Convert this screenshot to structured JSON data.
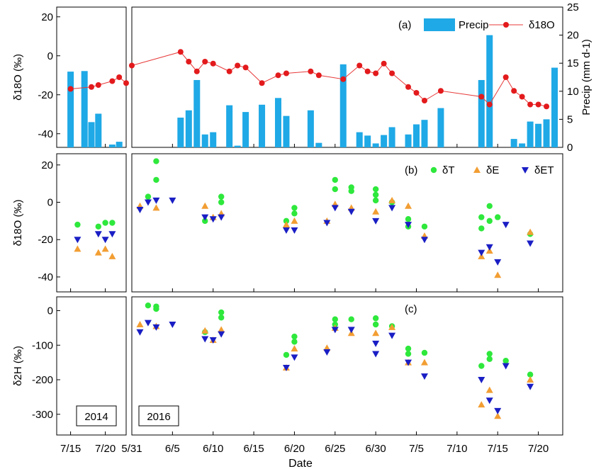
{
  "colors": {
    "precip_bar": "#1FA9E6",
    "precip_line": "#E83A3A",
    "d18o_marker": "#E31A1C",
    "delta_T": "#2EE83C",
    "delta_E": "#F29E33",
    "delta_ET": "#1A1EC4"
  },
  "figure": {
    "x_label": "Date",
    "year_left": "2014",
    "year_right": "2016",
    "left_ticks": [
      "7/15",
      "7/20"
    ],
    "right_ticks": [
      "5/31",
      "6/5",
      "6/10",
      "6/15",
      "6/20",
      "6/25",
      "6/30",
      "7/5",
      "7/10",
      "7/15",
      "7/20"
    ]
  },
  "chart_data": [
    {
      "id": "a",
      "type": "bar",
      "panel_label": "(a)",
      "ylabel_left": "δ18O (‰)",
      "ylabel_right": "Precip (mm d-1)",
      "ylim_left": [
        -47,
        25
      ],
      "yticks_left": [
        20,
        0,
        -20,
        -40
      ],
      "ylim_right": [
        0,
        25
      ],
      "yticks_right": [
        0,
        5,
        10,
        15,
        20,
        25
      ],
      "legend": {
        "position": "top-right",
        "precip_label": "Precip",
        "d18o_label": "δ18O"
      },
      "precip_2014": [
        {
          "x": "2014-07-15",
          "y": 13.5
        },
        {
          "x": "2014-07-17",
          "y": 13.6
        },
        {
          "x": "2014-07-18",
          "y": 4.5
        },
        {
          "x": "2014-07-19",
          "y": 6.0
        },
        {
          "x": "2014-07-21",
          "y": 0.5
        },
        {
          "x": "2014-07-22",
          "y": 1.0
        }
      ],
      "precip_2016": [
        {
          "x": "2016-06-06",
          "y": 5.3
        },
        {
          "x": "2016-06-07",
          "y": 6.6
        },
        {
          "x": "2016-06-08",
          "y": 12.0
        },
        {
          "x": "2016-06-09",
          "y": 2.3
        },
        {
          "x": "2016-06-10",
          "y": 2.7
        },
        {
          "x": "2016-06-12",
          "y": 7.5
        },
        {
          "x": "2016-06-13",
          "y": 0.3
        },
        {
          "x": "2016-06-14",
          "y": 6.3
        },
        {
          "x": "2016-06-16",
          "y": 7.6
        },
        {
          "x": "2016-06-18",
          "y": 8.8
        },
        {
          "x": "2016-06-19",
          "y": 5.6
        },
        {
          "x": "2016-06-22",
          "y": 6.6
        },
        {
          "x": "2016-06-23",
          "y": 0.8
        },
        {
          "x": "2016-06-26",
          "y": 14.8
        },
        {
          "x": "2016-06-28",
          "y": 2.7
        },
        {
          "x": "2016-06-29",
          "y": 2.1
        },
        {
          "x": "2016-06-30",
          "y": 0.7
        },
        {
          "x": "2016-07-01",
          "y": 2.2
        },
        {
          "x": "2016-07-02",
          "y": 3.6
        },
        {
          "x": "2016-07-04",
          "y": 2.3
        },
        {
          "x": "2016-07-05",
          "y": 4.1
        },
        {
          "x": "2016-07-06",
          "y": 4.9
        },
        {
          "x": "2016-07-08",
          "y": 7.0
        },
        {
          "x": "2016-07-13",
          "y": 12.0
        },
        {
          "x": "2016-07-14",
          "y": 20.0
        },
        {
          "x": "2016-07-17",
          "y": 1.5
        },
        {
          "x": "2016-07-18",
          "y": 0.7
        },
        {
          "x": "2016-07-19",
          "y": 4.6
        },
        {
          "x": "2016-07-20",
          "y": 4.2
        },
        {
          "x": "2016-07-21",
          "y": 5.0
        },
        {
          "x": "2016-07-22",
          "y": 14.2
        }
      ],
      "d18o_2014": [
        {
          "x": "2014-07-15",
          "y": -17
        },
        {
          "x": "2014-07-18",
          "y": -16
        },
        {
          "x": "2014-07-19",
          "y": -15
        },
        {
          "x": "2014-07-21",
          "y": -13
        },
        {
          "x": "2014-07-22",
          "y": -11
        },
        {
          "x": "2014-07-23",
          "y": -14
        }
      ],
      "d18o_2016": [
        {
          "x": "2016-05-31",
          "y": -5
        },
        {
          "x": "2016-06-06",
          "y": 2
        },
        {
          "x": "2016-06-07",
          "y": -3
        },
        {
          "x": "2016-06-08",
          "y": -8
        },
        {
          "x": "2016-06-09",
          "y": -3
        },
        {
          "x": "2016-06-10",
          "y": -4
        },
        {
          "x": "2016-06-12",
          "y": -8
        },
        {
          "x": "2016-06-13",
          "y": -5
        },
        {
          "x": "2016-06-14",
          "y": -6
        },
        {
          "x": "2016-06-16",
          "y": -14
        },
        {
          "x": "2016-06-18",
          "y": -10
        },
        {
          "x": "2016-06-19",
          "y": -9
        },
        {
          "x": "2016-06-22",
          "y": -8
        },
        {
          "x": "2016-06-23",
          "y": -10
        },
        {
          "x": "2016-06-26",
          "y": -12
        },
        {
          "x": "2016-06-28",
          "y": -5
        },
        {
          "x": "2016-06-29",
          "y": -8
        },
        {
          "x": "2016-06-30",
          "y": -9
        },
        {
          "x": "2016-07-01",
          "y": -4
        },
        {
          "x": "2016-07-02",
          "y": -9
        },
        {
          "x": "2016-07-04",
          "y": -16
        },
        {
          "x": "2016-07-05",
          "y": -19
        },
        {
          "x": "2016-07-06",
          "y": -23
        },
        {
          "x": "2016-07-08",
          "y": -18
        },
        {
          "x": "2016-07-13",
          "y": -21
        },
        {
          "x": "2016-07-14",
          "y": -25
        },
        {
          "x": "2016-07-16",
          "y": -11
        },
        {
          "x": "2016-07-17",
          "y": -18
        },
        {
          "x": "2016-07-18",
          "y": -21
        },
        {
          "x": "2016-07-19",
          "y": -25
        },
        {
          "x": "2016-07-20",
          "y": -25
        },
        {
          "x": "2016-07-21",
          "y": -26
        }
      ]
    },
    {
      "id": "b",
      "type": "scatter",
      "panel_label": "(b)",
      "ylabel": "δ18O (‰)",
      "ylim": [
        -48,
        26
      ],
      "yticks": [
        20,
        0,
        -20,
        -40
      ],
      "legend": {
        "position": "top-right",
        "labels": [
          "δT",
          "δE",
          "δET"
        ]
      },
      "series": [
        {
          "name": "δT",
          "points": [
            {
              "x": "2014-07-16",
              "y": -12
            },
            {
              "x": "2014-07-19",
              "y": -13
            },
            {
              "x": "2014-07-20",
              "y": -11
            },
            {
              "x": "2014-07-21",
              "y": -11
            },
            {
              "x": "2016-06-02",
              "y": 3
            },
            {
              "x": "2016-06-03",
              "y": 22
            },
            {
              "x": "2016-06-03",
              "y": 12
            },
            {
              "x": "2016-06-09",
              "y": -10
            },
            {
              "x": "2016-06-11",
              "y": 3
            },
            {
              "x": "2016-06-11",
              "y": 0
            },
            {
              "x": "2016-06-19",
              "y": -10
            },
            {
              "x": "2016-06-20",
              "y": -3
            },
            {
              "x": "2016-06-20",
              "y": -6
            },
            {
              "x": "2016-06-25",
              "y": 12
            },
            {
              "x": "2016-06-25",
              "y": 7
            },
            {
              "x": "2016-06-27",
              "y": 8
            },
            {
              "x": "2016-06-27",
              "y": 6
            },
            {
              "x": "2016-06-30",
              "y": 7
            },
            {
              "x": "2016-06-30",
              "y": 4
            },
            {
              "x": "2016-06-30",
              "y": 1
            },
            {
              "x": "2016-07-02",
              "y": 0
            },
            {
              "x": "2016-07-04",
              "y": -9
            },
            {
              "x": "2016-07-04",
              "y": -13
            },
            {
              "x": "2016-07-06",
              "y": -13
            },
            {
              "x": "2016-07-13",
              "y": -8
            },
            {
              "x": "2016-07-13",
              "y": -14
            },
            {
              "x": "2016-07-14",
              "y": -2
            },
            {
              "x": "2016-07-14",
              "y": -10
            },
            {
              "x": "2016-07-15",
              "y": -8
            },
            {
              "x": "2016-07-19",
              "y": -17
            }
          ]
        },
        {
          "name": "δE",
          "points": [
            {
              "x": "2014-07-16",
              "y": -25
            },
            {
              "x": "2014-07-19",
              "y": -27
            },
            {
              "x": "2014-07-20",
              "y": -25
            },
            {
              "x": "2014-07-21",
              "y": -29
            },
            {
              "x": "2016-06-01",
              "y": -2
            },
            {
              "x": "2016-06-03",
              "y": -3
            },
            {
              "x": "2016-06-09",
              "y": -2
            },
            {
              "x": "2016-06-10",
              "y": -8
            },
            {
              "x": "2016-06-11",
              "y": -6
            },
            {
              "x": "2016-06-19",
              "y": -12
            },
            {
              "x": "2016-06-20",
              "y": -10
            },
            {
              "x": "2016-06-24",
              "y": -10
            },
            {
              "x": "2016-06-25",
              "y": -1
            },
            {
              "x": "2016-06-27",
              "y": -3
            },
            {
              "x": "2016-06-30",
              "y": -5
            },
            {
              "x": "2016-07-02",
              "y": 1
            },
            {
              "x": "2016-07-04",
              "y": -2
            },
            {
              "x": "2016-07-06",
              "y": -18
            },
            {
              "x": "2016-07-13",
              "y": -29
            },
            {
              "x": "2016-07-14",
              "y": -26
            },
            {
              "x": "2016-07-15",
              "y": -39
            },
            {
              "x": "2016-07-19",
              "y": -16
            }
          ]
        },
        {
          "name": "δET",
          "points": [
            {
              "x": "2014-07-16",
              "y": -20
            },
            {
              "x": "2014-07-19",
              "y": -17
            },
            {
              "x": "2014-07-20",
              "y": -20
            },
            {
              "x": "2014-07-21",
              "y": -17
            },
            {
              "x": "2016-06-01",
              "y": -4
            },
            {
              "x": "2016-06-02",
              "y": 0
            },
            {
              "x": "2016-06-03",
              "y": 1
            },
            {
              "x": "2016-06-05",
              "y": 1
            },
            {
              "x": "2016-06-09",
              "y": -8
            },
            {
              "x": "2016-06-10",
              "y": -9
            },
            {
              "x": "2016-06-11",
              "y": -8
            },
            {
              "x": "2016-06-19",
              "y": -15
            },
            {
              "x": "2016-06-20",
              "y": -15
            },
            {
              "x": "2016-06-24",
              "y": -11
            },
            {
              "x": "2016-06-25",
              "y": -3
            },
            {
              "x": "2016-06-27",
              "y": -5
            },
            {
              "x": "2016-06-30",
              "y": -10
            },
            {
              "x": "2016-07-02",
              "y": -3
            },
            {
              "x": "2016-07-04",
              "y": -12
            },
            {
              "x": "2016-07-06",
              "y": -20
            },
            {
              "x": "2016-07-13",
              "y": -27
            },
            {
              "x": "2016-07-14",
              "y": -24
            },
            {
              "x": "2016-07-15",
              "y": -32
            },
            {
              "x": "2016-07-16",
              "y": -12
            },
            {
              "x": "2016-07-19",
              "y": -22
            }
          ]
        }
      ]
    },
    {
      "id": "c",
      "type": "scatter",
      "panel_label": "(c)",
      "ylabel": "δ2H (‰)",
      "ylim": [
        -360,
        40
      ],
      "yticks": [
        0,
        -100,
        -200,
        -300
      ],
      "series": [
        {
          "name": "δT",
          "points": [
            {
              "x": "2016-06-02",
              "y": 15
            },
            {
              "x": "2016-06-03",
              "y": 5
            },
            {
              "x": "2016-06-03",
              "y": 12
            },
            {
              "x": "2016-06-09",
              "y": -62
            },
            {
              "x": "2016-06-11",
              "y": -5
            },
            {
              "x": "2016-06-11",
              "y": -20
            },
            {
              "x": "2016-06-19",
              "y": -128
            },
            {
              "x": "2016-06-20",
              "y": -75
            },
            {
              "x": "2016-06-20",
              "y": -90
            },
            {
              "x": "2016-06-25",
              "y": -25
            },
            {
              "x": "2016-06-25",
              "y": -40
            },
            {
              "x": "2016-06-27",
              "y": -25
            },
            {
              "x": "2016-06-30",
              "y": -22
            },
            {
              "x": "2016-06-30",
              "y": -40
            },
            {
              "x": "2016-07-02",
              "y": -45
            },
            {
              "x": "2016-07-04",
              "y": -110
            },
            {
              "x": "2016-07-04",
              "y": -125
            },
            {
              "x": "2016-07-06",
              "y": -122
            },
            {
              "x": "2016-07-13",
              "y": -160
            },
            {
              "x": "2016-07-14",
              "y": -125
            },
            {
              "x": "2016-07-14",
              "y": -140
            },
            {
              "x": "2016-07-16",
              "y": -145
            },
            {
              "x": "2016-07-19",
              "y": -185
            }
          ]
        },
        {
          "name": "δE",
          "points": [
            {
              "x": "2016-06-01",
              "y": -40
            },
            {
              "x": "2016-06-03",
              "y": -45
            },
            {
              "x": "2016-06-09",
              "y": -58
            },
            {
              "x": "2016-06-10",
              "y": -85
            },
            {
              "x": "2016-06-11",
              "y": -55
            },
            {
              "x": "2016-06-19",
              "y": -165
            },
            {
              "x": "2016-06-20",
              "y": -110
            },
            {
              "x": "2016-06-24",
              "y": -108
            },
            {
              "x": "2016-06-25",
              "y": -50
            },
            {
              "x": "2016-06-27",
              "y": -65
            },
            {
              "x": "2016-06-30",
              "y": -65
            },
            {
              "x": "2016-07-02",
              "y": -48
            },
            {
              "x": "2016-07-04",
              "y": -150
            },
            {
              "x": "2016-07-06",
              "y": -150
            },
            {
              "x": "2016-07-13",
              "y": -272
            },
            {
              "x": "2016-07-14",
              "y": -230
            },
            {
              "x": "2016-07-15",
              "y": -305
            },
            {
              "x": "2016-07-19",
              "y": -200
            }
          ]
        },
        {
          "name": "δET",
          "points": [
            {
              "x": "2016-06-01",
              "y": -62
            },
            {
              "x": "2016-06-02",
              "y": -35
            },
            {
              "x": "2016-06-03",
              "y": -48
            },
            {
              "x": "2016-06-05",
              "y": -40
            },
            {
              "x": "2016-06-09",
              "y": -82
            },
            {
              "x": "2016-06-10",
              "y": -85
            },
            {
              "x": "2016-06-11",
              "y": -68
            },
            {
              "x": "2016-06-19",
              "y": -165
            },
            {
              "x": "2016-06-20",
              "y": -135
            },
            {
              "x": "2016-06-24",
              "y": -120
            },
            {
              "x": "2016-06-25",
              "y": -55
            },
            {
              "x": "2016-06-27",
              "y": -55
            },
            {
              "x": "2016-06-30",
              "y": -125
            },
            {
              "x": "2016-06-30",
              "y": -95
            },
            {
              "x": "2016-07-02",
              "y": -72
            },
            {
              "x": "2016-07-04",
              "y": -150
            },
            {
              "x": "2016-07-06",
              "y": -190
            },
            {
              "x": "2016-07-13",
              "y": -200
            },
            {
              "x": "2016-07-14",
              "y": -260
            },
            {
              "x": "2016-07-15",
              "y": -290
            },
            {
              "x": "2016-07-16",
              "y": -160
            },
            {
              "x": "2016-07-19",
              "y": -220
            }
          ]
        }
      ]
    }
  ]
}
